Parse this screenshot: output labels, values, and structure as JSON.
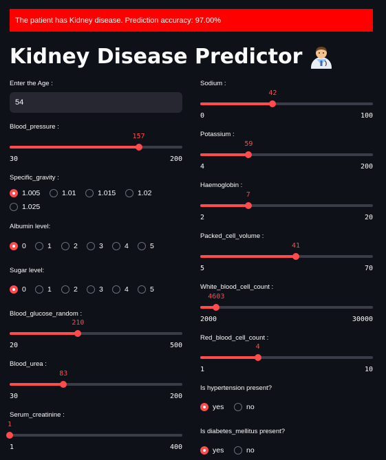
{
  "banner": "The patient has Kidney disease. Prediction accuracy: 97.00%",
  "title": "Kidney Disease Predictor",
  "title_emoji": "doctor-icon",
  "accent": "#ff4b4b",
  "left": {
    "age": {
      "label": "Enter the Age :",
      "value": "54"
    },
    "blood_pressure": {
      "label": "Blood_pressure :",
      "value": "157",
      "min": "30",
      "max": "200"
    },
    "specific_gravity": {
      "label": "Specific_gravity :",
      "options": [
        "1.005",
        "1.01",
        "1.015",
        "1.02",
        "1.025"
      ],
      "selected": "1.005"
    },
    "albumin": {
      "label": "Albumin level:",
      "options": [
        "0",
        "1",
        "2",
        "3",
        "4",
        "5"
      ],
      "selected": "0"
    },
    "sugar": {
      "label": "Sugar level:",
      "options": [
        "0",
        "1",
        "2",
        "3",
        "4",
        "5"
      ],
      "selected": "0"
    },
    "blood_glucose": {
      "label": "Blood_glucose_random :",
      "value": "210",
      "min": "20",
      "max": "500"
    },
    "blood_urea": {
      "label": "Blood_urea :",
      "value": "83",
      "min": "30",
      "max": "200"
    },
    "serum_creatinine": {
      "label": "Serum_creatinine :",
      "value": "1",
      "min": "1",
      "max": "400"
    }
  },
  "right": {
    "sodium": {
      "label": "Sodium :",
      "value": "42",
      "min": "0",
      "max": "100"
    },
    "potassium": {
      "label": "Potassium :",
      "value": "59",
      "min": "4",
      "max": "200"
    },
    "haemoglobin": {
      "label": "Haemoglobin :",
      "value": "7",
      "min": "2",
      "max": "20"
    },
    "packed_cell_volume": {
      "label": "Packed_cell_volume :",
      "value": "41",
      "min": "5",
      "max": "70"
    },
    "wbc": {
      "label": "White_blood_cell_count :",
      "value": "4603",
      "min": "2000",
      "max": "30000"
    },
    "rbc": {
      "label": "Red_blood_cell_count :",
      "value": "4",
      "min": "1",
      "max": "10"
    },
    "hypertension": {
      "label": "Is hypertension present?",
      "options": [
        "yes",
        "no"
      ],
      "selected": "yes"
    },
    "diabetes": {
      "label": "Is diabetes_mellitus present?",
      "options": [
        "yes",
        "no"
      ],
      "selected": "yes"
    }
  }
}
